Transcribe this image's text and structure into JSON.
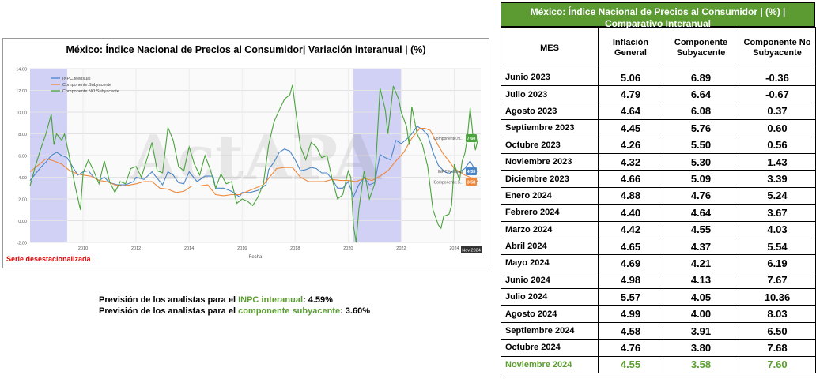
{
  "chart_title": "México: Índice Nacional de Precios al Consumidor| Variación interanual | (%)",
  "sa_note": "Serie desestacionalizada",
  "forecasts": [
    {
      "prefix": "Previsión de los analistas para el ",
      "highlight": "INPC interanual",
      "suffix": ": 4.59%"
    },
    {
      "prefix": "Previsión de los analistas para el ",
      "highlight": "componente subyacente",
      "suffix": ": 3.60%"
    }
  ],
  "table": {
    "title": "México: Índice Nacional de Precios al Consumidor | (%) | Comparativo Interanual",
    "headers": [
      "MES",
      "Inflación General",
      "Componente Subyacente",
      "Componente No Subyacente"
    ],
    "rows": [
      [
        "Junio 2023",
        "5.06",
        "6.89",
        "-0.36"
      ],
      [
        "Julio 2023",
        "4.79",
        "6.64",
        "-0.67"
      ],
      [
        "Agosto 2023",
        "4.64",
        "6.08",
        "0.37"
      ],
      [
        "Septiembre 2023",
        "4.45",
        "5.76",
        "0.60"
      ],
      [
        "Octubre 2023",
        "4.26",
        "5.50",
        "0.56"
      ],
      [
        "Noviembre 2023",
        "4.32",
        "5.30",
        "1.43"
      ],
      [
        "Diciembre 2023",
        "4.66",
        "5.09",
        "3.39"
      ],
      [
        "Enero 2024",
        "4.88",
        "4.76",
        "5.24"
      ],
      [
        "Febrero 2024",
        "4.40",
        "4.64",
        "3.67"
      ],
      [
        "Marzo 2024",
        "4.42",
        "4.55",
        "4.03"
      ],
      [
        "Abril 2024",
        "4.65",
        "4.37",
        "5.54"
      ],
      [
        "Mayo 2024",
        "4.69",
        "4.21",
        "6.19"
      ],
      [
        "Junio 2024",
        "4.98",
        "4.13",
        "7.67"
      ],
      [
        "Julio 2024",
        "5.57",
        "4.05",
        "10.36"
      ],
      [
        "Agosto 2024",
        "4.99",
        "4.00",
        "8.03"
      ],
      [
        "Septiembre 2024",
        "4.58",
        "3.91",
        "6.50"
      ],
      [
        "Octubre 2024",
        "4.76",
        "3.80",
        "7.68"
      ],
      [
        "Noviembre 2024",
        "4.55",
        "3.58",
        "7.60"
      ]
    ]
  },
  "chart_data": {
    "type": "line",
    "xlabel": "Fecha",
    "ylabel": "",
    "xlim": [
      2008.0,
      2025.0
    ],
    "ylim": [
      -2,
      14
    ],
    "yticks": [
      -2,
      0,
      2,
      4,
      6,
      8,
      10,
      12,
      14
    ],
    "ytick_labels": [
      "-2.00",
      "0.00",
      "2.00",
      "4.00",
      "6.00",
      "8.00",
      "10.00",
      "12.00",
      "14.00"
    ],
    "xticks": [
      2010,
      2012,
      2014,
      2016,
      2018,
      2020,
      2022,
      2024
    ],
    "xtick_labels": [
      "2010",
      "2012",
      "2014",
      "2016",
      "2018",
      "2020",
      "2022",
      "2024"
    ],
    "grid": true,
    "legend": "top-left",
    "shaded_periods": [
      [
        2008.0,
        2009.4
      ],
      [
        2020.2,
        2022.0
      ]
    ],
    "watermark": "ActAPA",
    "end_badge": "Nov 2024",
    "series": [
      {
        "name": "INPC.Mensual",
        "color": "#4a86c8",
        "end_label": "INPC.Mensual",
        "end_value_label": "4.55",
        "points": [
          [
            2008.0,
            3.7
          ],
          [
            2008.2,
            4.3
          ],
          [
            2008.4,
            4.9
          ],
          [
            2008.6,
            5.4
          ],
          [
            2008.8,
            6.0
          ],
          [
            2009.0,
            6.3
          ],
          [
            2009.2,
            6.0
          ],
          [
            2009.4,
            5.8
          ],
          [
            2009.6,
            5.0
          ],
          [
            2009.8,
            4.2
          ],
          [
            2010.0,
            4.5
          ],
          [
            2010.2,
            4.6
          ],
          [
            2010.4,
            4.0
          ],
          [
            2010.6,
            3.7
          ],
          [
            2010.8,
            4.0
          ],
          [
            2011.0,
            3.5
          ],
          [
            2011.3,
            3.3
          ],
          [
            2011.6,
            3.3
          ],
          [
            2011.9,
            3.6
          ],
          [
            2012.0,
            4.0
          ],
          [
            2012.3,
            3.8
          ],
          [
            2012.6,
            4.5
          ],
          [
            2012.9,
            3.6
          ],
          [
            2013.0,
            3.3
          ],
          [
            2013.2,
            4.5
          ],
          [
            2013.4,
            4.2
          ],
          [
            2013.6,
            3.5
          ],
          [
            2013.8,
            3.4
          ],
          [
            2014.0,
            4.5
          ],
          [
            2014.3,
            3.6
          ],
          [
            2014.6,
            4.1
          ],
          [
            2014.9,
            4.1
          ],
          [
            2015.0,
            3.0
          ],
          [
            2015.3,
            3.0
          ],
          [
            2015.6,
            2.7
          ],
          [
            2015.9,
            2.2
          ],
          [
            2016.0,
            2.6
          ],
          [
            2016.3,
            2.6
          ],
          [
            2016.6,
            2.8
          ],
          [
            2016.9,
            3.3
          ],
          [
            2017.0,
            4.7
          ],
          [
            2017.2,
            5.4
          ],
          [
            2017.4,
            6.3
          ],
          [
            2017.6,
            6.6
          ],
          [
            2017.8,
            6.4
          ],
          [
            2018.0,
            5.6
          ],
          [
            2018.2,
            4.6
          ],
          [
            2018.4,
            4.7
          ],
          [
            2018.6,
            4.9
          ],
          [
            2018.8,
            4.8
          ],
          [
            2019.0,
            4.4
          ],
          [
            2019.2,
            4.4
          ],
          [
            2019.4,
            3.8
          ],
          [
            2019.6,
            3.0
          ],
          [
            2019.8,
            3.0
          ],
          [
            2020.0,
            3.6
          ],
          [
            2020.2,
            2.2
          ],
          [
            2020.4,
            3.3
          ],
          [
            2020.6,
            4.0
          ],
          [
            2020.8,
            3.3
          ],
          [
            2021.0,
            3.5
          ],
          [
            2021.2,
            6.1
          ],
          [
            2021.4,
            5.8
          ],
          [
            2021.6,
            5.6
          ],
          [
            2021.8,
            7.4
          ],
          [
            2022.0,
            7.1
          ],
          [
            2022.2,
            7.5
          ],
          [
            2022.4,
            8.0
          ],
          [
            2022.6,
            8.7
          ],
          [
            2022.8,
            8.4
          ],
          [
            2023.0,
            7.9
          ],
          [
            2023.2,
            6.3
          ],
          [
            2023.4,
            5.1
          ],
          [
            2023.6,
            4.6
          ],
          [
            2023.8,
            4.3
          ],
          [
            2024.0,
            4.7
          ],
          [
            2024.2,
            4.5
          ],
          [
            2024.4,
            4.8
          ],
          [
            2024.6,
            5.5
          ],
          [
            2024.8,
            4.6
          ],
          [
            2024.9,
            4.55
          ]
        ]
      },
      {
        "name": "Componente.Subyacente",
        "color": "#f0883c",
        "end_label": "Componente.S...",
        "end_value_label": "3.58",
        "points": [
          [
            2008.0,
            4.5
          ],
          [
            2008.3,
            5.1
          ],
          [
            2008.6,
            5.7
          ],
          [
            2008.9,
            5.5
          ],
          [
            2009.2,
            5.2
          ],
          [
            2009.5,
            4.6
          ],
          [
            2009.8,
            4.3
          ],
          [
            2010.0,
            4.2
          ],
          [
            2010.3,
            4.1
          ],
          [
            2010.6,
            3.7
          ],
          [
            2010.9,
            3.6
          ],
          [
            2011.2,
            3.3
          ],
          [
            2011.5,
            3.2
          ],
          [
            2011.8,
            3.3
          ],
          [
            2012.0,
            3.4
          ],
          [
            2012.3,
            3.6
          ],
          [
            2012.6,
            3.6
          ],
          [
            2012.9,
            3.0
          ],
          [
            2013.2,
            2.9
          ],
          [
            2013.5,
            2.6
          ],
          [
            2013.8,
            2.7
          ],
          [
            2014.1,
            3.2
          ],
          [
            2014.4,
            3.2
          ],
          [
            2014.7,
            3.3
          ],
          [
            2015.0,
            2.4
          ],
          [
            2015.3,
            2.3
          ],
          [
            2015.6,
            2.4
          ],
          [
            2015.9,
            2.4
          ],
          [
            2016.2,
            2.7
          ],
          [
            2016.5,
            3.0
          ],
          [
            2016.8,
            3.3
          ],
          [
            2017.0,
            3.9
          ],
          [
            2017.3,
            4.8
          ],
          [
            2017.6,
            4.9
          ],
          [
            2017.9,
            4.9
          ],
          [
            2018.2,
            4.0
          ],
          [
            2018.5,
            3.6
          ],
          [
            2018.8,
            3.6
          ],
          [
            2019.1,
            3.6
          ],
          [
            2019.4,
            3.8
          ],
          [
            2019.7,
            3.7
          ],
          [
            2020.0,
            3.7
          ],
          [
            2020.3,
            3.6
          ],
          [
            2020.6,
            3.9
          ],
          [
            2020.9,
            3.7
          ],
          [
            2021.2,
            4.1
          ],
          [
            2021.5,
            4.6
          ],
          [
            2021.8,
            5.5
          ],
          [
            2022.1,
            6.3
          ],
          [
            2022.4,
            7.6
          ],
          [
            2022.7,
            8.5
          ],
          [
            2022.9,
            8.5
          ],
          [
            2023.1,
            8.3
          ],
          [
            2023.4,
            6.9
          ],
          [
            2023.6,
            6.1
          ],
          [
            2023.8,
            5.5
          ],
          [
            2024.0,
            4.8
          ],
          [
            2024.2,
            4.5
          ],
          [
            2024.4,
            4.2
          ],
          [
            2024.6,
            4.0
          ],
          [
            2024.8,
            3.8
          ],
          [
            2024.9,
            3.58
          ]
        ]
      },
      {
        "name": "Componente.NO.Subyacente",
        "color": "#4aa33c",
        "end_label": "Componente.N...",
        "end_value_label": "7.60",
        "points": [
          [
            2008.0,
            3.2
          ],
          [
            2008.2,
            5.0
          ],
          [
            2008.4,
            6.6
          ],
          [
            2008.6,
            8.0
          ],
          [
            2008.8,
            9.8
          ],
          [
            2008.9,
            7.0
          ],
          [
            2009.0,
            8.0
          ],
          [
            2009.2,
            7.4
          ],
          [
            2009.3,
            8.0
          ],
          [
            2009.5,
            5.7
          ],
          [
            2009.7,
            3.2
          ],
          [
            2009.9,
            1.0
          ],
          [
            2010.0,
            4.4
          ],
          [
            2010.2,
            5.6
          ],
          [
            2010.4,
            4.6
          ],
          [
            2010.6,
            3.4
          ],
          [
            2010.8,
            5.5
          ],
          [
            2011.0,
            3.6
          ],
          [
            2011.2,
            2.6
          ],
          [
            2011.4,
            3.6
          ],
          [
            2011.6,
            3.4
          ],
          [
            2011.8,
            4.8
          ],
          [
            2012.0,
            5.0
          ],
          [
            2012.2,
            4.0
          ],
          [
            2012.4,
            5.6
          ],
          [
            2012.6,
            7.2
          ],
          [
            2012.8,
            4.6
          ],
          [
            2013.0,
            4.4
          ],
          [
            2013.2,
            8.6
          ],
          [
            2013.4,
            7.4
          ],
          [
            2013.6,
            5.0
          ],
          [
            2013.8,
            4.6
          ],
          [
            2014.0,
            6.8
          ],
          [
            2014.2,
            5.2
          ],
          [
            2014.4,
            4.2
          ],
          [
            2014.6,
            6.0
          ],
          [
            2014.8,
            4.7
          ],
          [
            2015.0,
            3.0
          ],
          [
            2015.2,
            4.3
          ],
          [
            2015.4,
            3.4
          ],
          [
            2015.6,
            3.6
          ],
          [
            2015.8,
            1.6
          ],
          [
            2016.0,
            2.0
          ],
          [
            2016.2,
            1.8
          ],
          [
            2016.4,
            1.4
          ],
          [
            2016.6,
            2.2
          ],
          [
            2016.8,
            3.4
          ],
          [
            2017.0,
            7.0
          ],
          [
            2017.2,
            9.1
          ],
          [
            2017.4,
            10.2
          ],
          [
            2017.6,
            11.2
          ],
          [
            2017.8,
            11.6
          ],
          [
            2017.9,
            12.5
          ],
          [
            2018.0,
            10.5
          ],
          [
            2018.2,
            6.8
          ],
          [
            2018.4,
            5.6
          ],
          [
            2018.6,
            7.2
          ],
          [
            2018.8,
            6.8
          ],
          [
            2019.0,
            5.8
          ],
          [
            2019.2,
            6.0
          ],
          [
            2019.4,
            3.8
          ],
          [
            2019.6,
            2.0
          ],
          [
            2019.8,
            2.4
          ],
          [
            2020.0,
            4.6
          ],
          [
            2020.1,
            4.0
          ],
          [
            2020.2,
            -0.5
          ],
          [
            2020.3,
            -2.0
          ],
          [
            2020.4,
            1.0
          ],
          [
            2020.6,
            4.6
          ],
          [
            2020.8,
            2.0
          ],
          [
            2021.0,
            3.4
          ],
          [
            2021.2,
            12.2
          ],
          [
            2021.4,
            10.2
          ],
          [
            2021.5,
            8.0
          ],
          [
            2021.7,
            12.4
          ],
          [
            2021.9,
            11.2
          ],
          [
            2022.0,
            10.0
          ],
          [
            2022.2,
            8.7
          ],
          [
            2022.3,
            7.0
          ],
          [
            2022.4,
            10.5
          ],
          [
            2022.6,
            8.0
          ],
          [
            2022.8,
            7.0
          ],
          [
            2023.0,
            5.0
          ],
          [
            2023.2,
            1.0
          ],
          [
            2023.4,
            -0.4
          ],
          [
            2023.5,
            -0.7
          ],
          [
            2023.6,
            0.4
          ],
          [
            2023.8,
            0.6
          ],
          [
            2023.9,
            1.4
          ],
          [
            2024.0,
            5.2
          ],
          [
            2024.2,
            3.7
          ],
          [
            2024.3,
            5.5
          ],
          [
            2024.4,
            6.2
          ],
          [
            2024.5,
            7.7
          ],
          [
            2024.6,
            10.4
          ],
          [
            2024.7,
            8.0
          ],
          [
            2024.8,
            6.5
          ],
          [
            2024.9,
            7.6
          ]
        ]
      }
    ]
  }
}
